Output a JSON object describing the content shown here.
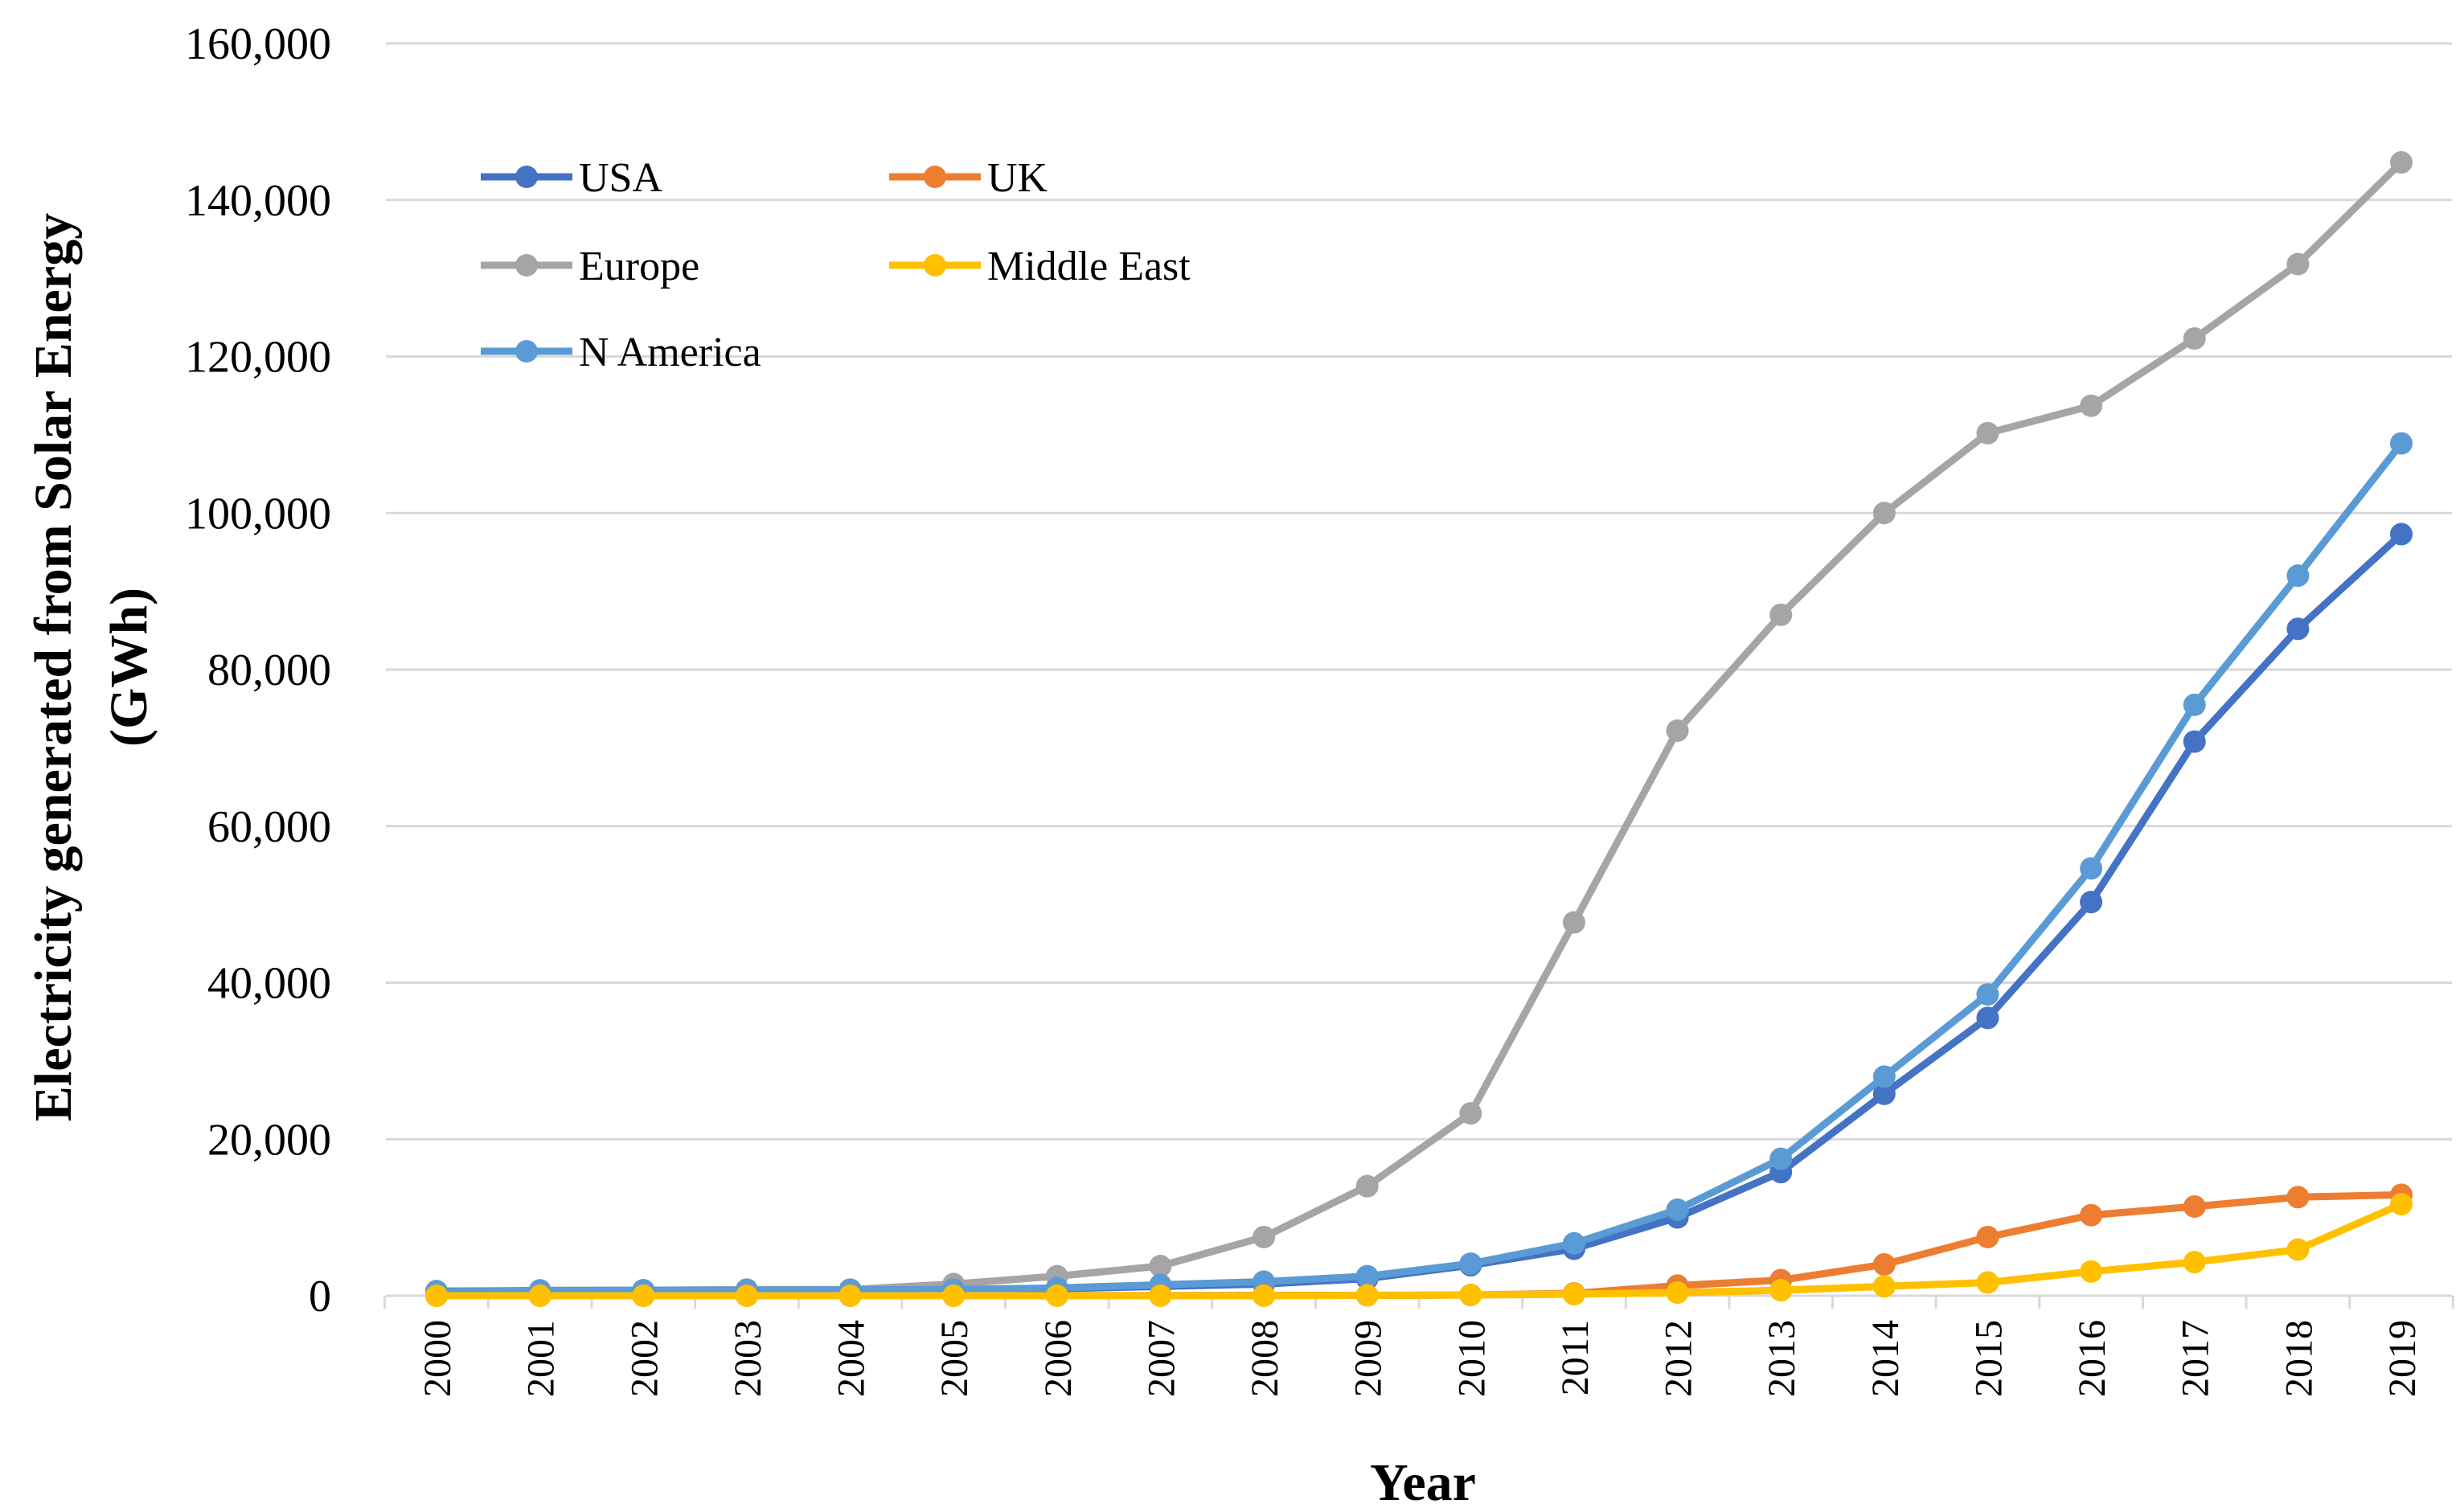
{
  "chart_data": {
    "type": "line",
    "title": "",
    "xlabel": "Year",
    "ylabel_line1": "Electricity generated from Solar Energy",
    "ylabel_line2": "(GWh)",
    "ylim": [
      0,
      160000
    ],
    "yticks": [
      0,
      20000,
      40000,
      60000,
      80000,
      100000,
      120000,
      140000,
      160000
    ],
    "ytick_labels": [
      "0",
      "20,000",
      "40,000",
      "60,000",
      "80,000",
      "100,000",
      "120,000",
      "140,000",
      "160,000"
    ],
    "categories": [
      "2000",
      "2001",
      "2002",
      "2003",
      "2004",
      "2005",
      "2006",
      "2007",
      "2008",
      "2009",
      "2010",
      "2011",
      "2012",
      "2013",
      "2014",
      "2015",
      "2016",
      "2017",
      "2018",
      "2019"
    ],
    "grid": true,
    "legend_position": "top-left",
    "series": [
      {
        "name": "USA",
        "color": "#4472c4",
        "values": [
          500,
          550,
          600,
          600,
          650,
          700,
          900,
          1200,
          1500,
          2200,
          3900,
          6000,
          10000,
          15800,
          25800,
          35500,
          50300,
          70800,
          85200,
          97300
        ]
      },
      {
        "name": "UK",
        "color": "#ed7d31",
        "values": [
          0,
          0,
          0,
          0,
          0,
          10,
          20,
          30,
          40,
          50,
          100,
          300,
          1300,
          2000,
          4000,
          7500,
          10300,
          11400,
          12600,
          12900
        ]
      },
      {
        "name": "Europe",
        "color": "#a5a5a5",
        "values": [
          500,
          700,
          700,
          800,
          800,
          1500,
          2500,
          3800,
          7500,
          14000,
          23300,
          47700,
          72200,
          87000,
          100000,
          110200,
          113700,
          122300,
          131800,
          144800
        ]
      },
      {
        "name": "Middle East",
        "color": "#ffc000",
        "values": [
          0,
          0,
          0,
          0,
          0,
          0,
          0,
          0,
          0,
          50,
          100,
          200,
          400,
          700,
          1200,
          1700,
          3100,
          4300,
          5900,
          11700
        ]
      },
      {
        "name": "N America",
        "color": "#5b9bd5",
        "values": [
          600,
          650,
          700,
          700,
          750,
          800,
          1000,
          1400,
          1800,
          2500,
          4100,
          6700,
          11000,
          17500,
          28000,
          38500,
          54600,
          75500,
          92000,
          108900
        ]
      }
    ]
  }
}
